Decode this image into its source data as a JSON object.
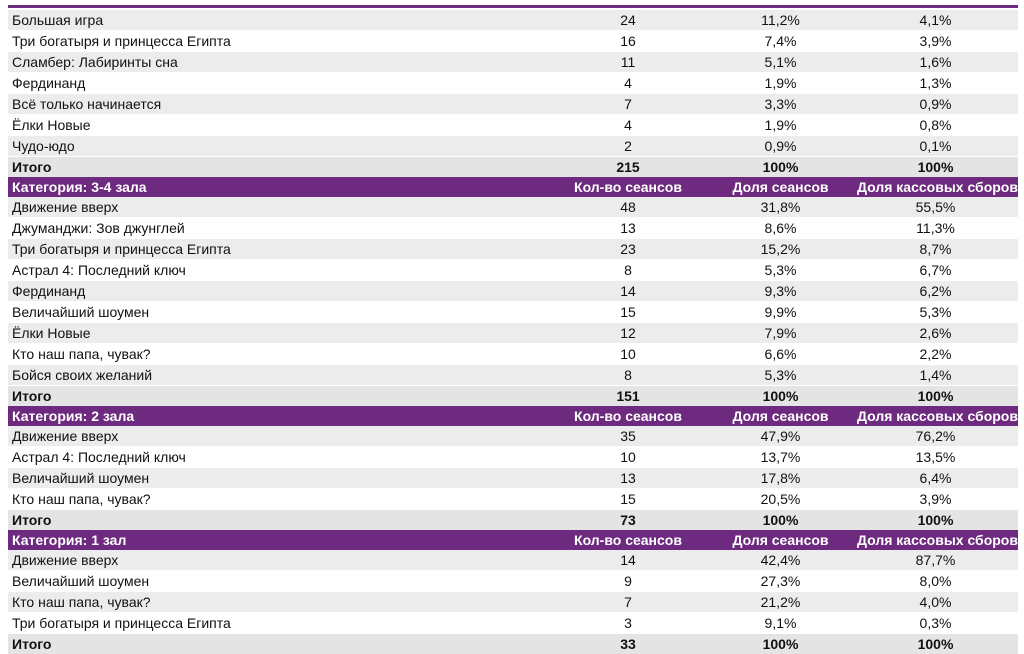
{
  "colors": {
    "header_bg": "#6d2a7e",
    "stripe": "#ececec",
    "accent_rule": "#6b2d7e"
  },
  "sections": [
    {
      "header": null,
      "rows": [
        {
          "title": "Большая игра",
          "sessions": "24",
          "share": "11,2%",
          "box": "4,1%"
        },
        {
          "title": "Три богатыря и принцесса Египта",
          "sessions": "16",
          "share": "7,4%",
          "box": "3,9%"
        },
        {
          "title": "Сламбер: Лабиринты сна",
          "sessions": "11",
          "share": "5,1%",
          "box": "1,6%"
        },
        {
          "title": "Фердинанд",
          "sessions": "4",
          "share": "1,9%",
          "box": "1,3%"
        },
        {
          "title": "Всё только начинается",
          "sessions": "7",
          "share": "3,3%",
          "box": "0,9%"
        },
        {
          "title": "Ёлки Новые",
          "sessions": "4",
          "share": "1,9%",
          "box": "0,8%"
        },
        {
          "title": "Чудо-юдо",
          "sessions": "2",
          "share": "0,9%",
          "box": "0,1%"
        }
      ],
      "total": {
        "label": "Итого",
        "sessions": "215",
        "share": "100%",
        "box": "100%"
      }
    },
    {
      "header": {
        "category": "Категория: 3-4 зала",
        "col_sessions": "Кол-во сеансов",
        "col_share": "Доля сеансов",
        "col_box": "Доля кассовых сборов"
      },
      "rows": [
        {
          "title": "Движение вверх",
          "sessions": "48",
          "share": "31,8%",
          "box": "55,5%"
        },
        {
          "title": "Джуманджи: Зов джунглей",
          "sessions": "13",
          "share": "8,6%",
          "box": "11,3%"
        },
        {
          "title": "Три богатыря и принцесса Египта",
          "sessions": "23",
          "share": "15,2%",
          "box": "8,7%"
        },
        {
          "title": "Астрал 4: Последний ключ",
          "sessions": "8",
          "share": "5,3%",
          "box": "6,7%"
        },
        {
          "title": "Фердинанд",
          "sessions": "14",
          "share": "9,3%",
          "box": "6,2%"
        },
        {
          "title": "Величайший шоумен",
          "sessions": "15",
          "share": "9,9%",
          "box": "5,3%"
        },
        {
          "title": "Ёлки Новые",
          "sessions": "12",
          "share": "7,9%",
          "box": "2,6%"
        },
        {
          "title": "Кто наш папа, чувак?",
          "sessions": "10",
          "share": "6,6%",
          "box": "2,2%"
        },
        {
          "title": "Бойся своих желаний",
          "sessions": "8",
          "share": "5,3%",
          "box": "1,4%"
        }
      ],
      "total": {
        "label": "Итого",
        "sessions": "151",
        "share": "100%",
        "box": "100%"
      }
    },
    {
      "header": {
        "category": "Категория: 2 зала",
        "col_sessions": "Кол-во сеансов",
        "col_share": "Доля сеансов",
        "col_box": "Доля кассовых сборов"
      },
      "rows": [
        {
          "title": "Движение вверх",
          "sessions": "35",
          "share": "47,9%",
          "box": "76,2%"
        },
        {
          "title": "Астрал 4: Последний ключ",
          "sessions": "10",
          "share": "13,7%",
          "box": "13,5%"
        },
        {
          "title": "Величайший шоумен",
          "sessions": "13",
          "share": "17,8%",
          "box": "6,4%"
        },
        {
          "title": "Кто наш папа, чувак?",
          "sessions": "15",
          "share": "20,5%",
          "box": "3,9%"
        }
      ],
      "total": {
        "label": "Итого",
        "sessions": "73",
        "share": "100%",
        "box": "100%"
      }
    },
    {
      "header": {
        "category": "Категория: 1 зал",
        "col_sessions": "Кол-во сеансов",
        "col_share": "Доля сеансов",
        "col_box": "Доля кассовых сборов"
      },
      "rows": [
        {
          "title": "Движение вверх",
          "sessions": "14",
          "share": "42,4%",
          "box": "87,7%"
        },
        {
          "title": "Величайший шоумен",
          "sessions": "9",
          "share": "27,3%",
          "box": "8,0%"
        },
        {
          "title": "Кто наш папа, чувак?",
          "sessions": "7",
          "share": "21,2%",
          "box": "4,0%"
        },
        {
          "title": "Три богатыря и принцесса Египта",
          "sessions": "3",
          "share": "9,1%",
          "box": "0,3%"
        }
      ],
      "total": {
        "label": "Итого",
        "sessions": "33",
        "share": "100%",
        "box": "100%"
      }
    }
  ]
}
